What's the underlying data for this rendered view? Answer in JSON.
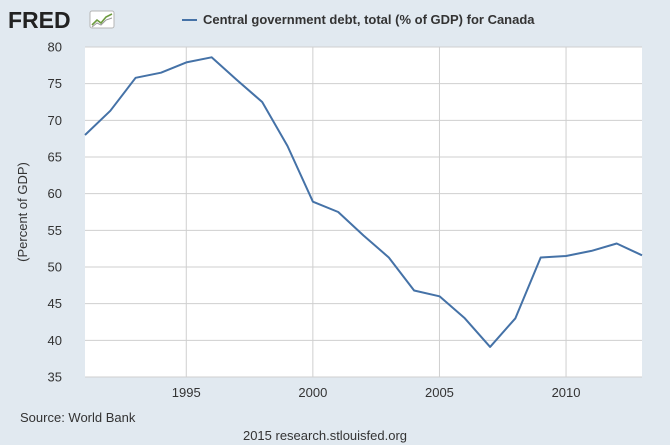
{
  "header": {
    "logo_text": "FRED",
    "legend_label": "Central government debt, total (% of GDP) for Canada"
  },
  "colors": {
    "background": "#e1e9f0",
    "plot_background": "#ffffff",
    "series_line": "#4572a7",
    "gridline": "#cfcfcf",
    "logo_icon_green": "#6d9b3e"
  },
  "footer": {
    "source": "Source: World Bank",
    "url": "2015 research.stlouisfed.org"
  },
  "chart_data": {
    "type": "line",
    "title": "",
    "xlabel": "",
    "ylabel": "(Percent of GDP)",
    "xlim": [
      1991,
      2013
    ],
    "ylim": [
      35,
      80
    ],
    "y_ticks": [
      35,
      40,
      45,
      50,
      55,
      60,
      65,
      70,
      75,
      80
    ],
    "x_ticks": [
      1995,
      2000,
      2005,
      2010
    ],
    "grid": true,
    "legend_position": "top",
    "series": [
      {
        "name": "Central government debt, total (% of GDP) for Canada",
        "x": [
          1991,
          1992,
          1993,
          1994,
          1995,
          1996,
          1997,
          1998,
          1999,
          2000,
          2001,
          2002,
          2003,
          2004,
          2005,
          2006,
          2007,
          2008,
          2009,
          2010,
          2011,
          2012,
          2013
        ],
        "values": [
          68.0,
          71.3,
          75.8,
          76.5,
          77.9,
          78.6,
          75.5,
          72.5,
          66.5,
          58.9,
          57.5,
          54.3,
          51.3,
          46.8,
          46.0,
          43.0,
          39.1,
          43.0,
          51.3,
          51.5,
          52.2,
          53.2,
          51.6
        ]
      }
    ]
  }
}
